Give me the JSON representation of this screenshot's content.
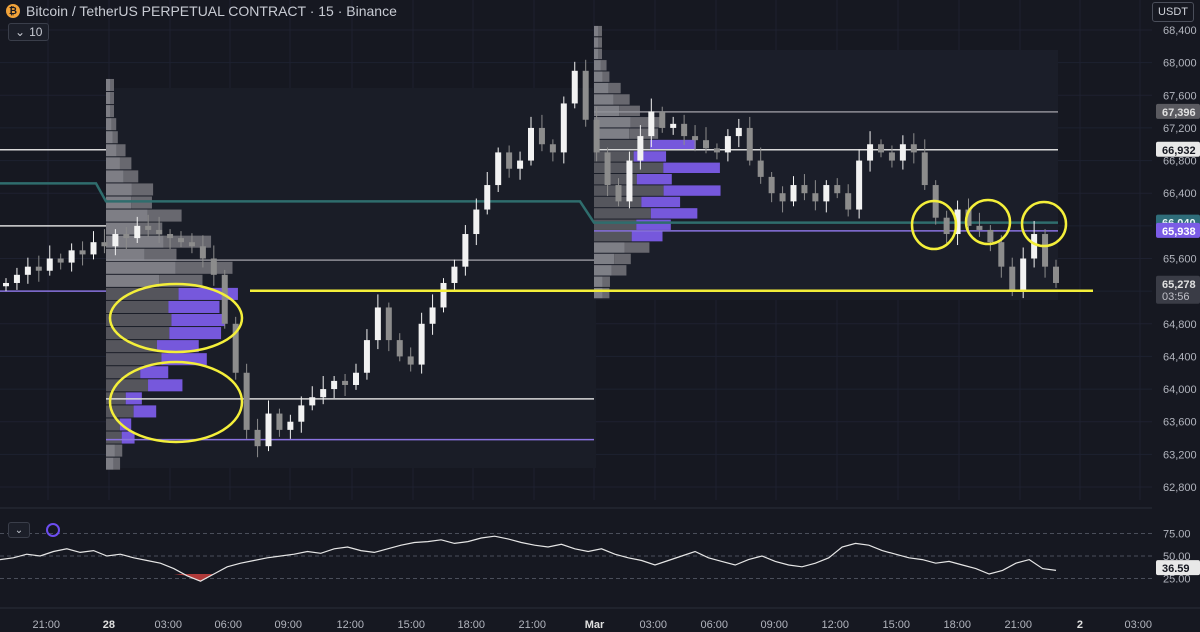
{
  "header": {
    "title": "Bitcoin / TetherUS PERPETUAL CONTRACT · 15 · Binance",
    "logo_glyph": "₿",
    "interval_value": "10",
    "chevron_glyph": "⌄",
    "currency": "USDT"
  },
  "rsi": {
    "collapse_glyph": "⌄",
    "levels": [
      "75.00",
      "50.00",
      "25.00"
    ],
    "current_value": "36.59"
  },
  "colors": {
    "background": "#161821",
    "candle_up": "#f2f2f2",
    "candle_down": "#8c8c8c",
    "volume_profile_value_area": "#7b5ce6",
    "volume_profile_outside": "#6d6d73",
    "vwap_line": "#2f6d6d",
    "support_line": "#f4ef3a",
    "highlight_circle": "#f4ef3a",
    "rsi_line": "#e6e6e6",
    "rsi_oversold_fill": "#b03a3a",
    "level_purple": "#8a73e0",
    "level_white": "#d9d9d9"
  },
  "chart_data": {
    "type": "candlestick",
    "symbol": "BTCUSDT.P",
    "y_axis": {
      "ticks": [
        "68,400",
        "68,000",
        "67,600",
        "67,200",
        "66,800",
        "66,400",
        "66,000",
        "65,600",
        "65,200",
        "64,800",
        "64,400",
        "64,000",
        "63,600",
        "63,200",
        "62,800"
      ],
      "range": [
        62700,
        68600
      ]
    },
    "x_axis": {
      "ticks": [
        "21:00",
        "28",
        "03:00",
        "06:00",
        "09:00",
        "12:00",
        "15:00",
        "18:00",
        "21:00",
        "Mar",
        "03:00",
        "06:00",
        "09:00",
        "12:00",
        "15:00",
        "18:00",
        "21:00",
        "2",
        "03:00"
      ]
    },
    "price_labels": {
      "level_high": "67,396",
      "level_white": "66,932",
      "vwap": "66,040",
      "poc_purple": "65,938",
      "last_price": "65,278",
      "countdown": "03:56"
    },
    "horizontal_levels": [
      {
        "price": 67396,
        "color": "gray"
      },
      {
        "price": 66932,
        "color": "white"
      },
      {
        "price": 65938,
        "color": "purple"
      },
      {
        "price": 65580,
        "color": "gray"
      },
      {
        "price": 63880,
        "color": "white"
      },
      {
        "price": 63380,
        "color": "purple"
      },
      {
        "price": 65205,
        "color": "yellow"
      }
    ],
    "candles_close_path": [
      65300,
      65400,
      65500,
      65450,
      65600,
      65550,
      65700,
      65650,
      65800,
      65750,
      65900,
      65850,
      66000,
      65950,
      65900,
      65850,
      65800,
      65750,
      65600,
      65400,
      64800,
      64200,
      63500,
      63300,
      63700,
      63500,
      63600,
      63800,
      63900,
      64000,
      64100,
      64050,
      64200,
      64600,
      65000,
      64600,
      64400,
      64300,
      64800,
      65000,
      65300,
      65500,
      65900,
      66200,
      66500,
      66900,
      66700,
      66800,
      67200,
      67000,
      66900,
      67500,
      67900,
      67300,
      66900,
      66500,
      66300,
      66800,
      67100,
      67400,
      67200,
      67250,
      67100,
      67050,
      66950,
      66900,
      67100,
      67200,
      66800,
      66600,
      66400,
      66300,
      66500,
      66400,
      66300,
      66500,
      66400,
      66200,
      66800,
      67000,
      66900,
      66800,
      67000,
      66900,
      66500,
      66100,
      65900,
      66200,
      66000,
      65950,
      65800,
      65500,
      65200,
      65600,
      65900,
      65500,
      65300
    ],
    "volume_profiles": [
      {
        "session": "28",
        "high": 67800,
        "low": 63000
      },
      {
        "session": "Mar",
        "high": 68450,
        "low": 65100
      }
    ],
    "highlight_circles": 5,
    "rsi_series": [
      46,
      48,
      52,
      50,
      55,
      58,
      54,
      56,
      50,
      52,
      48,
      45,
      42,
      36,
      28,
      22,
      30,
      38,
      42,
      45,
      48,
      50,
      52,
      55,
      53,
      58,
      60,
      56,
      54,
      58,
      62,
      65,
      66,
      68,
      64,
      66,
      70,
      72,
      69,
      65,
      62,
      60,
      63,
      58,
      55,
      58,
      52,
      48,
      45,
      40,
      45,
      50,
      55,
      48,
      44,
      40,
      46,
      50,
      44,
      40,
      38,
      42,
      48,
      60,
      64,
      62,
      56,
      52,
      48,
      46,
      42,
      44,
      40,
      36,
      30,
      34,
      42,
      46,
      36,
      34
    ]
  }
}
